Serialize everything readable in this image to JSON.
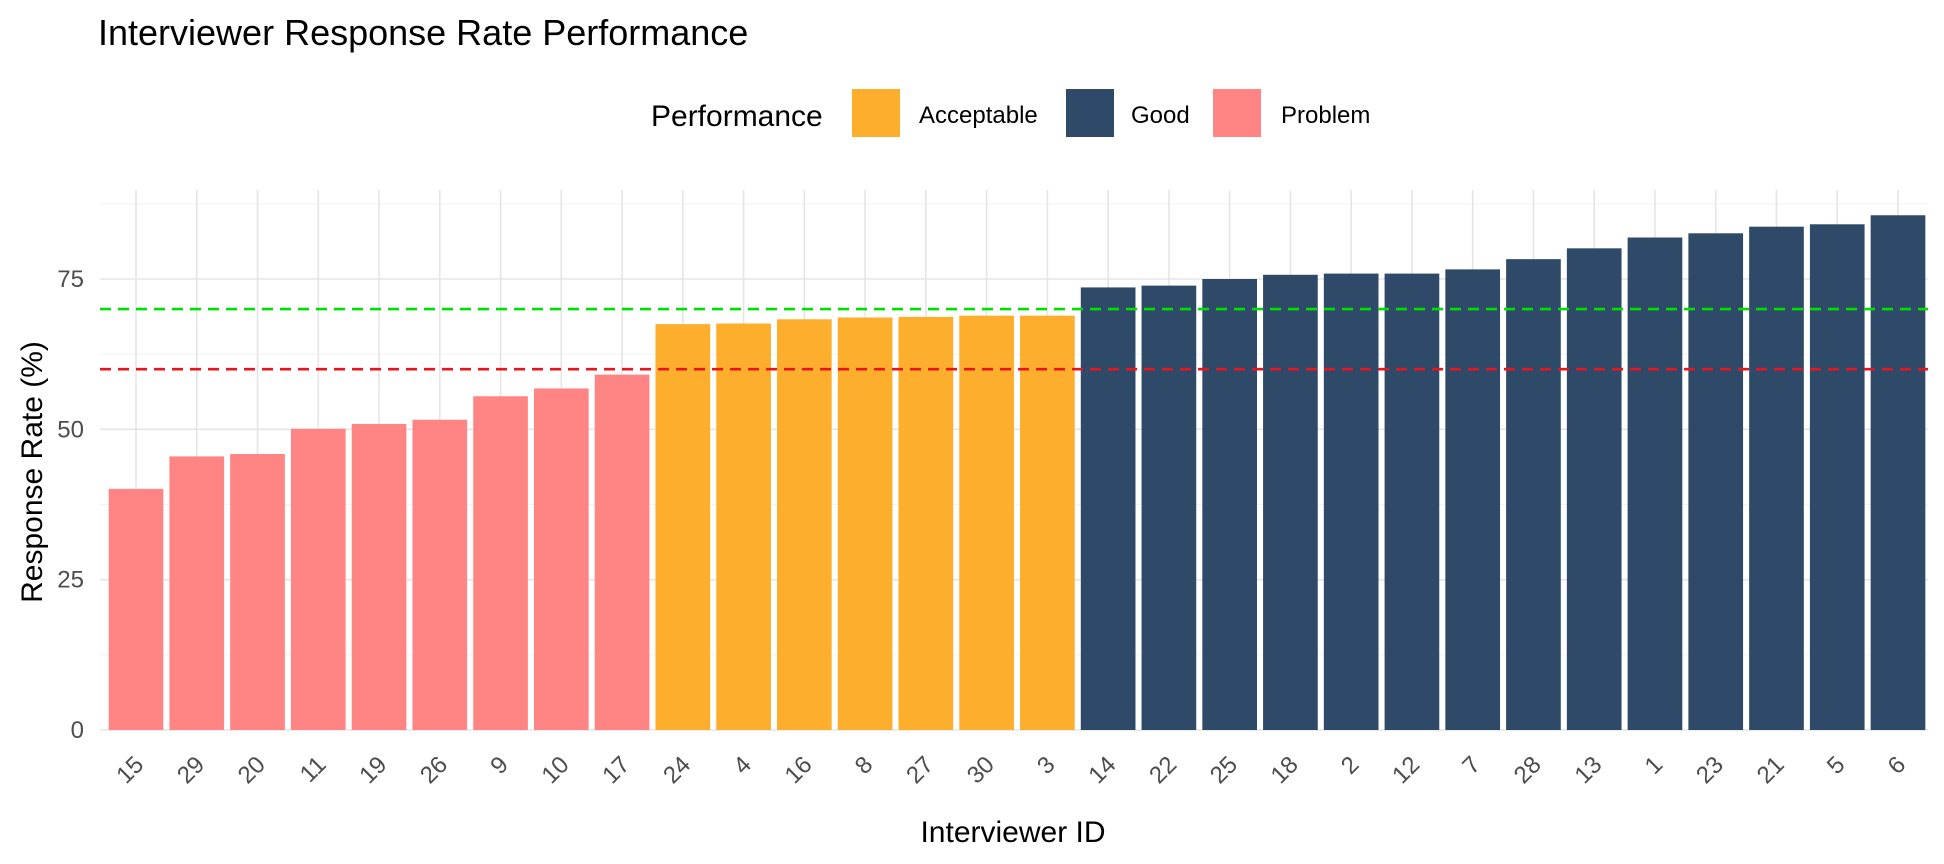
{
  "chart_data": {
    "type": "bar",
    "title": "Interviewer Response Rate Performance",
    "xlabel": "Interviewer ID",
    "ylabel": "Response Rate (%)",
    "ylim": [
      0,
      90
    ],
    "yticks": [
      0,
      25,
      50,
      75
    ],
    "grid": true,
    "legend": {
      "title": "Performance",
      "position": "top",
      "entries": [
        {
          "label": "Acceptable",
          "color": "#FDAE2C"
        },
        {
          "label": "Good",
          "color": "#2F4A68"
        },
        {
          "label": "Problem",
          "color": "#FF8585"
        }
      ]
    },
    "categories": [
      "15",
      "29",
      "20",
      "11",
      "19",
      "26",
      "9",
      "10",
      "17",
      "24",
      "4",
      "16",
      "8",
      "27",
      "30",
      "3",
      "14",
      "22",
      "25",
      "18",
      "2",
      "12",
      "7",
      "28",
      "13",
      "1",
      "23",
      "21",
      "5",
      "6"
    ],
    "values": [
      40.1,
      45.5,
      45.9,
      50.1,
      50.9,
      51.6,
      55.5,
      56.8,
      59.1,
      67.5,
      67.6,
      68.3,
      68.6,
      68.7,
      68.9,
      68.9,
      73.6,
      73.9,
      75.0,
      75.7,
      75.9,
      75.9,
      76.6,
      78.3,
      80.1,
      81.9,
      82.6,
      83.7,
      84.1,
      85.6
    ],
    "groups": [
      "Problem",
      "Problem",
      "Problem",
      "Problem",
      "Problem",
      "Problem",
      "Problem",
      "Problem",
      "Problem",
      "Acceptable",
      "Acceptable",
      "Acceptable",
      "Acceptable",
      "Acceptable",
      "Acceptable",
      "Acceptable",
      "Good",
      "Good",
      "Good",
      "Good",
      "Good",
      "Good",
      "Good",
      "Good",
      "Good",
      "Good",
      "Good",
      "Good",
      "Good",
      "Good"
    ],
    "reference_lines": [
      {
        "y": 70,
        "color": "#00E000",
        "style": "dashed"
      },
      {
        "y": 60,
        "color": "#E8141E",
        "style": "dashed"
      }
    ]
  }
}
